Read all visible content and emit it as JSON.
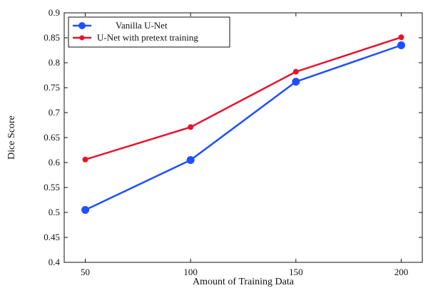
{
  "chart_data": {
    "type": "line",
    "title": "",
    "xlabel": "Amount of Training Data",
    "ylabel": "Dice Score",
    "x": [
      50,
      100,
      150,
      200
    ],
    "x_ticks": [
      "50",
      "100",
      "150",
      "200"
    ],
    "xlim": [
      40,
      210
    ],
    "ylim": [
      0.4,
      0.9
    ],
    "y_ticks": [
      "0.4",
      "0.45",
      "0.5",
      "0.55",
      "0.6",
      "0.65",
      "0.7",
      "0.75",
      "0.8",
      "0.85",
      "0.9"
    ],
    "grid": false,
    "legend_position": "top-left",
    "series": [
      {
        "name": "Vanilla U-Net",
        "color": "#1f4fff",
        "values": [
          0.505,
          0.605,
          0.762,
          0.835
        ]
      },
      {
        "name": "U-Net with pretext training",
        "color": "#e8112d",
        "values": [
          0.606,
          0.671,
          0.782,
          0.851
        ]
      }
    ]
  }
}
